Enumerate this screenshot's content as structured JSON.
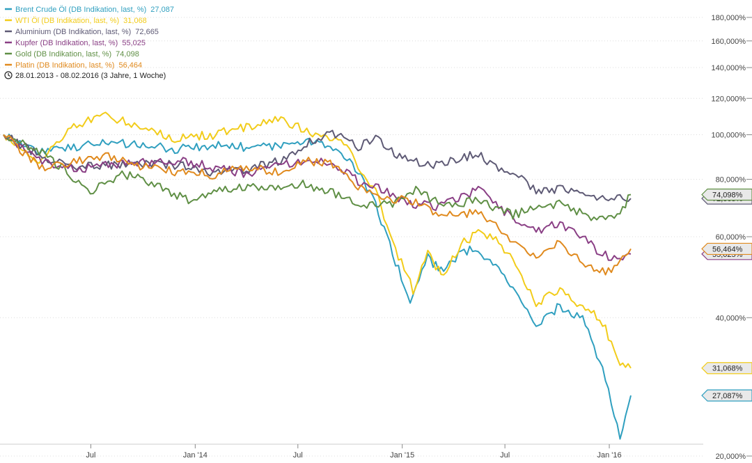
{
  "chart_data": {
    "type": "line",
    "scale": "log",
    "date_range": "28.01.2013 - 08.02.2016 (3 Jahre, 1 Woche)",
    "x_tick_labels": [
      "Jul",
      "Jan '14",
      "Jul",
      "Jan '15",
      "Jul",
      "Jan '16"
    ],
    "x_tick_dates": [
      "2013-07-01",
      "2014-01-01",
      "2014-07-01",
      "2015-01-01",
      "2015-07-01",
      "2016-01-01"
    ],
    "y_ticks": [
      {
        "value": 180,
        "label": "180,000%"
      },
      {
        "value": 160,
        "label": "160,000%"
      },
      {
        "value": 140,
        "label": "140,000%"
      },
      {
        "value": 120,
        "label": "120,000%"
      },
      {
        "value": 100,
        "label": "100,000%"
      },
      {
        "value": 80,
        "label": "80,000%"
      },
      {
        "value": 60,
        "label": "60,000%"
      },
      {
        "value": 40,
        "label": "40,000%"
      },
      {
        "value": 20,
        "label": "20,000%"
      }
    ],
    "ylim": [
      20,
      180
    ],
    "series": [
      {
        "name": "Brent Crude Öl (DB Indikation, last, %)",
        "last_label": "27,087",
        "last_value": 27.087,
        "badge": "27,087%",
        "color": "#2f9fbf",
        "dates": [
          "2013-01-28",
          "2013-04-01",
          "2013-06-01",
          "2013-08-01",
          "2013-10-01",
          "2013-12-01",
          "2014-02-01",
          "2014-04-01",
          "2014-06-01",
          "2014-07-15",
          "2014-09-01",
          "2014-10-15",
          "2014-11-15",
          "2014-12-15",
          "2015-01-15",
          "2015-02-15",
          "2015-03-15",
          "2015-04-15",
          "2015-05-15",
          "2015-06-15",
          "2015-07-15",
          "2015-08-25",
          "2015-10-01",
          "2015-11-15",
          "2015-12-15",
          "2016-01-20",
          "2016-02-08"
        ],
        "values": [
          100,
          92,
          94,
          96,
          95,
          93,
          95,
          94,
          94,
          98,
          93,
          84,
          70,
          55,
          43,
          54,
          50,
          56,
          56,
          52,
          46,
          38,
          42,
          40,
          32,
          22,
          27.087
        ]
      },
      {
        "name": "WTI Öl (DB Indikation, last, %)",
        "last_label": "31,068",
        "last_value": 31.068,
        "badge": "31,068%",
        "color": "#f2cc1a",
        "dates": [
          "2013-01-28",
          "2013-04-01",
          "2013-06-01",
          "2013-08-01",
          "2013-10-01",
          "2013-12-01",
          "2014-02-01",
          "2014-04-01",
          "2014-06-01",
          "2014-08-01",
          "2014-09-15",
          "2014-10-15",
          "2014-11-15",
          "2014-12-15",
          "2015-01-20",
          "2015-02-15",
          "2015-03-15",
          "2015-04-15",
          "2015-05-15",
          "2015-06-15",
          "2015-07-15",
          "2015-08-25",
          "2015-10-01",
          "2015-11-15",
          "2015-12-15",
          "2016-01-20",
          "2016-02-08"
        ],
        "values": [
          100,
          87,
          105,
          110,
          103,
          98,
          100,
          104,
          108,
          100,
          97,
          86,
          75,
          58,
          46,
          55,
          49,
          58,
          61,
          60,
          53,
          43,
          46,
          42,
          40,
          32,
          31.068
        ]
      },
      {
        "name": "Aluminium (DB Indikation, last, %)",
        "last_label": "72,665",
        "last_value": 72.665,
        "badge": "72,665%",
        "color": "#5e5a75",
        "dates": [
          "2013-01-28",
          "2013-04-01",
          "2013-06-01",
          "2013-08-01",
          "2013-10-01",
          "2013-12-01",
          "2014-02-01",
          "2014-04-01",
          "2014-06-01",
          "2014-08-01",
          "2014-09-15",
          "2014-10-15",
          "2014-11-15",
          "2015-01-01",
          "2015-02-15",
          "2015-04-01",
          "2015-05-15",
          "2015-06-15",
          "2015-07-15",
          "2015-08-25",
          "2015-10-01",
          "2015-11-15",
          "2015-12-15",
          "2016-01-15",
          "2016-02-08"
        ],
        "values": [
          100,
          90,
          85,
          86,
          86,
          86,
          83,
          84,
          88,
          98,
          101,
          94,
          98,
          89,
          86,
          88,
          91,
          85,
          83,
          76,
          76,
          76,
          72,
          73,
          72.665
        ]
      },
      {
        "name": "Kupfer (DB Indikation, last, %)",
        "last_label": "55,025",
        "last_value": 55.025,
        "badge": "55,025%",
        "color": "#8a3f85",
        "dates": [
          "2013-01-28",
          "2013-04-01",
          "2013-06-01",
          "2013-08-01",
          "2013-10-01",
          "2013-12-01",
          "2014-02-01",
          "2014-04-01",
          "2014-06-01",
          "2014-08-01",
          "2014-09-15",
          "2014-10-15",
          "2014-11-15",
          "2015-01-15",
          "2015-03-01",
          "2015-04-15",
          "2015-05-25",
          "2015-06-15",
          "2015-07-15",
          "2015-08-25",
          "2015-10-01",
          "2015-11-15",
          "2015-12-15",
          "2016-01-15",
          "2016-02-08"
        ],
        "values": [
          100,
          88,
          84,
          86,
          87,
          88,
          85,
          82,
          86,
          88,
          85,
          79,
          77,
          71,
          70,
          73,
          77,
          70,
          66,
          62,
          64,
          60,
          55,
          54,
          55.025
        ]
      },
      {
        "name": "Gold (DB Indikation, last, %)",
        "last_label": "74,098",
        "last_value": 74.098,
        "badge": "74,098%",
        "color": "#5f8f45",
        "dates": [
          "2013-01-28",
          "2013-04-01",
          "2013-05-15",
          "2013-06-25",
          "2013-08-25",
          "2013-10-01",
          "2013-12-20",
          "2014-03-15",
          "2014-06-01",
          "2014-07-10",
          "2014-09-01",
          "2014-10-15",
          "2014-11-15",
          "2014-12-15",
          "2015-01-25",
          "2015-03-15",
          "2015-05-15",
          "2015-07-15",
          "2015-08-20",
          "2015-10-15",
          "2015-11-25",
          "2015-12-15",
          "2016-01-15",
          "2016-02-08"
        ],
        "values": [
          100,
          92,
          84,
          75,
          82,
          80,
          72,
          77,
          76,
          78,
          75,
          71,
          70,
          71,
          76,
          70,
          72,
          67,
          69,
          71,
          66,
          65,
          66,
          74.098
        ]
      },
      {
        "name": "Platin (DB Indikation, last, %)",
        "last_label": "56,464",
        "last_value": 56.464,
        "badge": "56,464%",
        "color": "#e08a1e",
        "dates": [
          "2013-01-28",
          "2013-04-01",
          "2013-06-01",
          "2013-08-01",
          "2013-10-01",
          "2013-12-01",
          "2014-02-01",
          "2014-04-01",
          "2014-06-01",
          "2014-07-15",
          "2014-09-01",
          "2014-10-15",
          "2014-11-15",
          "2015-01-20",
          "2015-03-01",
          "2015-04-15",
          "2015-05-15",
          "2015-06-15",
          "2015-07-15",
          "2015-08-25",
          "2015-10-01",
          "2015-11-15",
          "2015-12-15",
          "2016-01-15",
          "2016-02-08"
        ],
        "values": [
          100,
          85,
          87,
          90,
          85,
          83,
          82,
          85,
          83,
          88,
          86,
          77,
          73,
          72,
          68,
          67,
          68,
          64,
          58,
          55,
          58,
          53,
          50,
          52,
          56.464
        ]
      }
    ]
  }
}
